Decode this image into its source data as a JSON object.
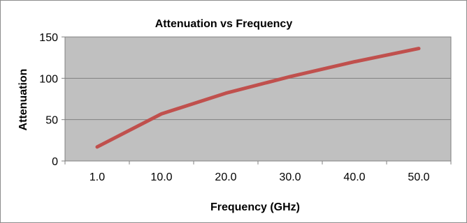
{
  "chart_data": {
    "type": "line",
    "title": "Attenuation vs Frequency",
    "xlabel": "Frequency (GHz)",
    "ylabel": "Attenuation",
    "categories": [
      "1.0",
      "10.0",
      "20.0",
      "30.0",
      "40.0",
      "50.0"
    ],
    "series": [
      {
        "values": [
          17,
          57,
          82,
          102,
          120,
          136
        ],
        "color": "#c0504d"
      }
    ],
    "ylim": [
      0,
      150
    ],
    "yticks": [
      0,
      50,
      100,
      150
    ],
    "grid": true,
    "legend": "none",
    "plot_background": "#c0c0c0"
  }
}
